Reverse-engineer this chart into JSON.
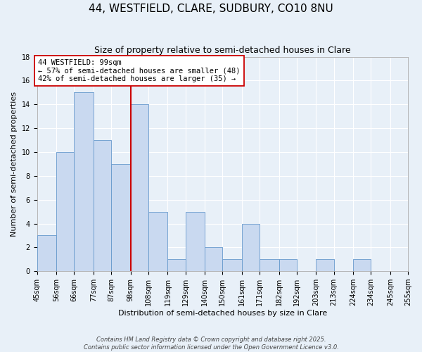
{
  "title": "44, WESTFIELD, CLARE, SUDBURY, CO10 8NU",
  "subtitle": "Size of property relative to semi-detached houses in Clare",
  "xlabel": "Distribution of semi-detached houses by size in Clare",
  "ylabel": "Number of semi-detached properties",
  "bin_labels": [
    "45sqm",
    "56sqm",
    "66sqm",
    "77sqm",
    "87sqm",
    "98sqm",
    "108sqm",
    "119sqm",
    "129sqm",
    "140sqm",
    "150sqm",
    "161sqm",
    "171sqm",
    "182sqm",
    "192sqm",
    "203sqm",
    "213sqm",
    "224sqm",
    "234sqm",
    "245sqm",
    "255sqm"
  ],
  "bin_edges": [
    45,
    56,
    66,
    77,
    87,
    98,
    108,
    119,
    129,
    140,
    150,
    161,
    171,
    182,
    192,
    203,
    213,
    224,
    234,
    245,
    255
  ],
  "counts": [
    3,
    10,
    15,
    11,
    9,
    14,
    5,
    1,
    5,
    2,
    1,
    4,
    1,
    1,
    0,
    1,
    0,
    1,
    0,
    0
  ],
  "bar_color": "#c9d9f0",
  "bar_edge_color": "#6699cc",
  "vline_x": 98,
  "vline_color": "#cc0000",
  "annotation_text": "44 WESTFIELD: 99sqm\n← 57% of semi-detached houses are smaller (48)\n42% of semi-detached houses are larger (35) →",
  "annotation_box_color": "#ffffff",
  "annotation_box_edge": "#cc0000",
  "ylim": [
    0,
    18
  ],
  "yticks": [
    0,
    2,
    4,
    6,
    8,
    10,
    12,
    14,
    16,
    18
  ],
  "background_color": "#e8f0f8",
  "footer_line1": "Contains HM Land Registry data © Crown copyright and database right 2025.",
  "footer_line2": "Contains public sector information licensed under the Open Government Licence v3.0.",
  "title_fontsize": 11,
  "subtitle_fontsize": 9,
  "axis_label_fontsize": 8,
  "tick_fontsize": 7,
  "annotation_fontsize": 7.5
}
